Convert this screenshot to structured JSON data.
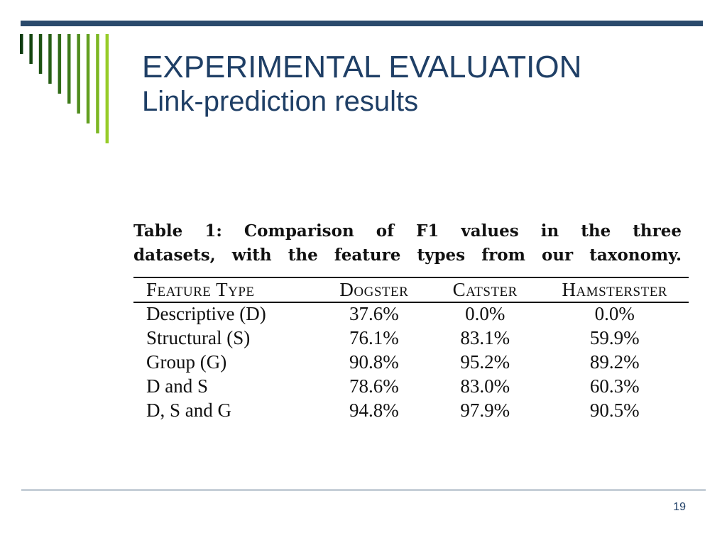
{
  "slide": {
    "title": "EXPERIMENTAL EVALUATION",
    "subtitle": "Link-prediction results",
    "page_number": "19"
  },
  "table": {
    "caption_line1": "Table 1:  Comparison of F1 values in the three",
    "caption_line2": "datasets, with the feature types from our taxonomy.",
    "headers": [
      "Feature Type",
      "Dogster",
      "Catster",
      "Hamsterster"
    ],
    "rows": [
      [
        "Descriptive (D)",
        "37.6%",
        "0.0%",
        "0.0%"
      ],
      [
        "Structural (S)",
        "76.1%",
        "83.1%",
        "59.9%"
      ],
      [
        "Group (G)",
        "90.8%",
        "95.2%",
        "89.2%"
      ],
      [
        "D and S",
        "78.6%",
        "83.0%",
        "60.3%"
      ],
      [
        "D, S and G",
        "94.8%",
        "97.9%",
        "90.5%"
      ]
    ]
  },
  "theme": {
    "accent": "#2a4a6c",
    "title_color": "#1f3f66",
    "stripe_colors": [
      "#0d3b0f",
      "#14460f",
      "#1d5212",
      "#275f15",
      "#316c18",
      "#3e7b1a",
      "#4f8c1d",
      "#63a020",
      "#7cb723",
      "#97cc29"
    ]
  }
}
